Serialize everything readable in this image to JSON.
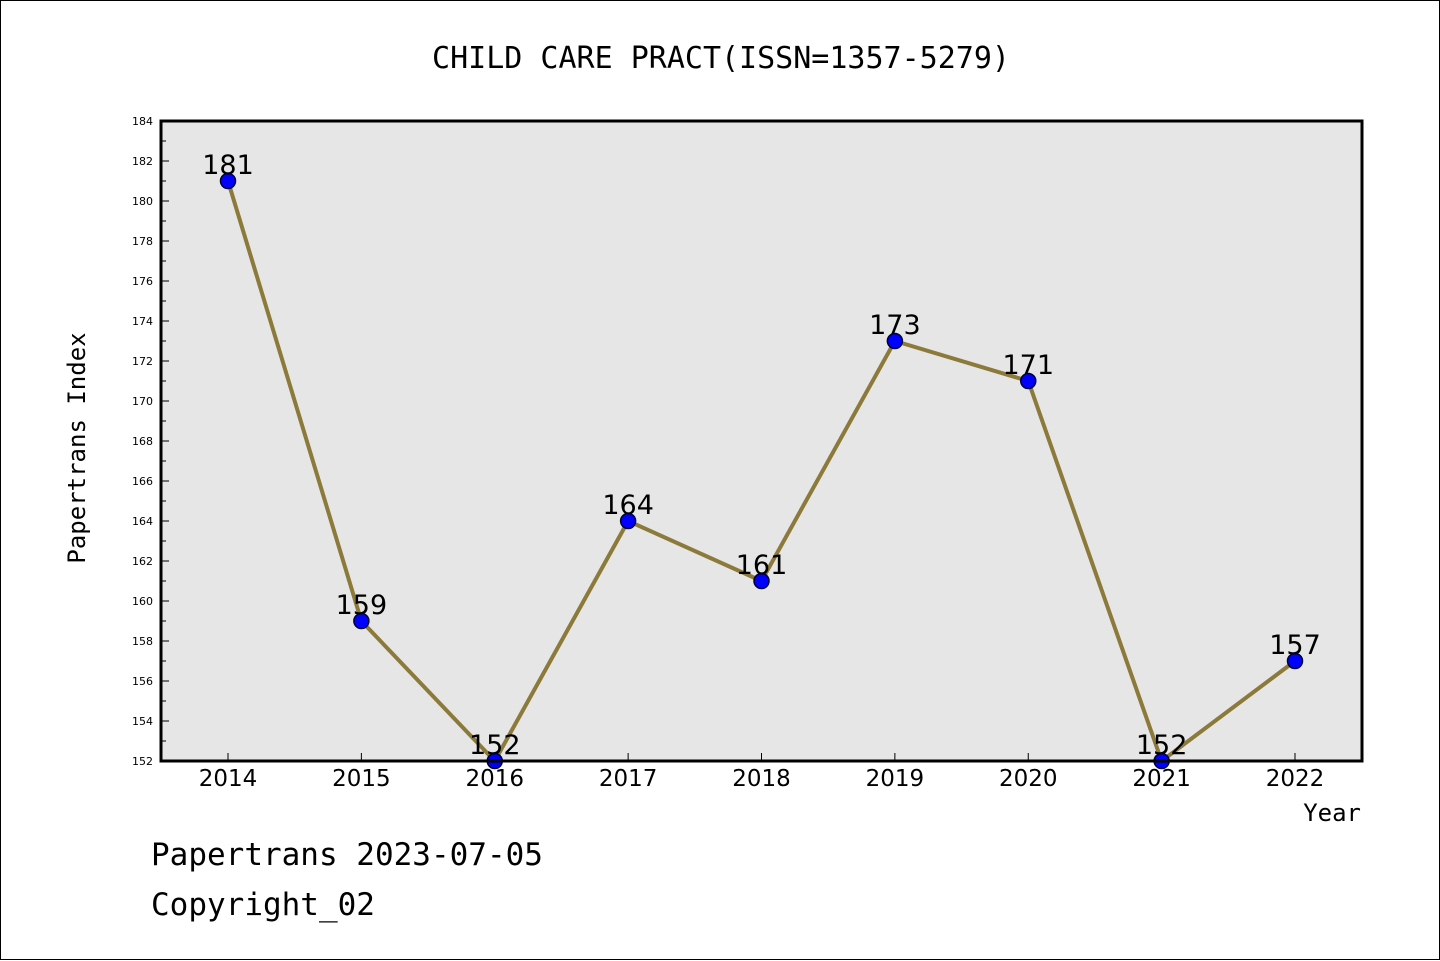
{
  "chart_data": {
    "type": "line",
    "title": "CHILD CARE PRACT(ISSN=1357-5279)",
    "xlabel": "Year",
    "ylabel": "Papertrans Index",
    "categories": [
      "2014",
      "2015",
      "2016",
      "2017",
      "2018",
      "2019",
      "2020",
      "2021",
      "2022"
    ],
    "series": [
      {
        "values": [
          181,
          159,
          152,
          164,
          161,
          173,
          171,
          152,
          157
        ]
      }
    ],
    "ylim": [
      152,
      184
    ],
    "yticks": [
      "152",
      "154",
      "156",
      "158",
      "160",
      "162",
      "164",
      "166",
      "168",
      "170",
      "172",
      "174",
      "176",
      "178",
      "180",
      "182",
      "184"
    ],
    "data_labels": [
      "181",
      "159",
      "152",
      "164",
      "161",
      "173",
      "171",
      "152",
      "157"
    ],
    "grid": false,
    "legend": "none",
    "colors": {
      "line": "#8c7a3a",
      "marker_fill": "#0000ff",
      "marker_edge": "#000033",
      "plot_bg": "#e6e6e6"
    }
  },
  "footer": {
    "line1": "Papertrans 2023-07-05",
    "line2": "Copyright_02"
  }
}
